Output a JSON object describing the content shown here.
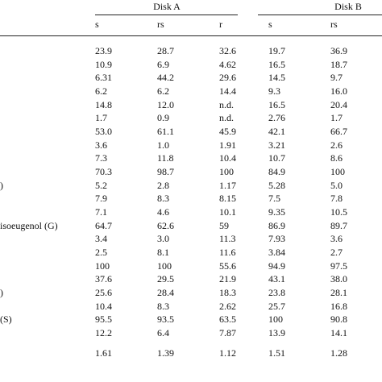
{
  "table": {
    "groups": [
      "Disk A",
      "Disk B"
    ],
    "columns": [
      "s",
      "rs",
      "r",
      "s",
      "rs"
    ],
    "rows": [
      [
        "",
        "23.9",
        "28.7",
        "32.6",
        "19.7",
        "36.9"
      ],
      [
        "",
        "10.9",
        "6.9",
        "4.62",
        "16.5",
        "18.7"
      ],
      [
        "",
        "6.31",
        "44.2",
        "29.6",
        "14.5",
        "9.7"
      ],
      [
        "",
        "6.2",
        "6.2",
        "14.4",
        "9.3",
        "16.0"
      ],
      [
        "",
        "14.8",
        "12.0",
        "n.d.",
        "16.5",
        "20.4"
      ],
      [
        "",
        "1.7",
        "0.9",
        "n.d.",
        "2.76",
        "1.7"
      ],
      [
        "",
        "53.0",
        "61.1",
        "45.9",
        "42.1",
        "66.7"
      ],
      [
        "",
        "3.6",
        "1.0",
        "1.91",
        "3.21",
        "2.6"
      ],
      [
        "",
        "7.3",
        "11.8",
        "10.4",
        "10.7",
        "8.6"
      ],
      [
        "",
        "70.3",
        "98.7",
        "100",
        "84.9",
        "100"
      ],
      [
        ")",
        "5.2",
        "2.8",
        "1.17",
        "5.28",
        "5.0"
      ],
      [
        "",
        "7.9",
        "8.3",
        "8.15",
        "7.5",
        "7.8"
      ],
      [
        "",
        "7.1",
        "4.6",
        "10.1",
        "9.35",
        "10.5"
      ],
      [
        "isoeugenol (G)",
        "64.7",
        "62.6",
        "59",
        "86.9",
        "89.7"
      ],
      [
        "",
        "3.4",
        "3.0",
        "11.3",
        "7.93",
        "3.6"
      ],
      [
        "",
        "2.5",
        "8.1",
        "11.6",
        "3.84",
        "2.7"
      ],
      [
        "",
        "100",
        "100",
        "55.6",
        "94.9",
        "97.5"
      ],
      [
        "",
        "37.6",
        "29.5",
        "21.9",
        "43.1",
        "38.0"
      ],
      [
        ")",
        "25.6",
        "28.4",
        "18.3",
        "23.8",
        "28.1"
      ],
      [
        "",
        "10.4",
        "8.3",
        "2.62",
        "25.7",
        "16.8"
      ],
      [
        "(S)",
        "95.5",
        "93.5",
        "63.5",
        "100",
        "90.8"
      ],
      [
        "",
        "12.2",
        "6.4",
        "7.87",
        "13.9",
        "14.1"
      ]
    ],
    "footer_row": [
      "",
      "1.61",
      "1.39",
      "1.12",
      "1.51",
      "1.28"
    ]
  }
}
